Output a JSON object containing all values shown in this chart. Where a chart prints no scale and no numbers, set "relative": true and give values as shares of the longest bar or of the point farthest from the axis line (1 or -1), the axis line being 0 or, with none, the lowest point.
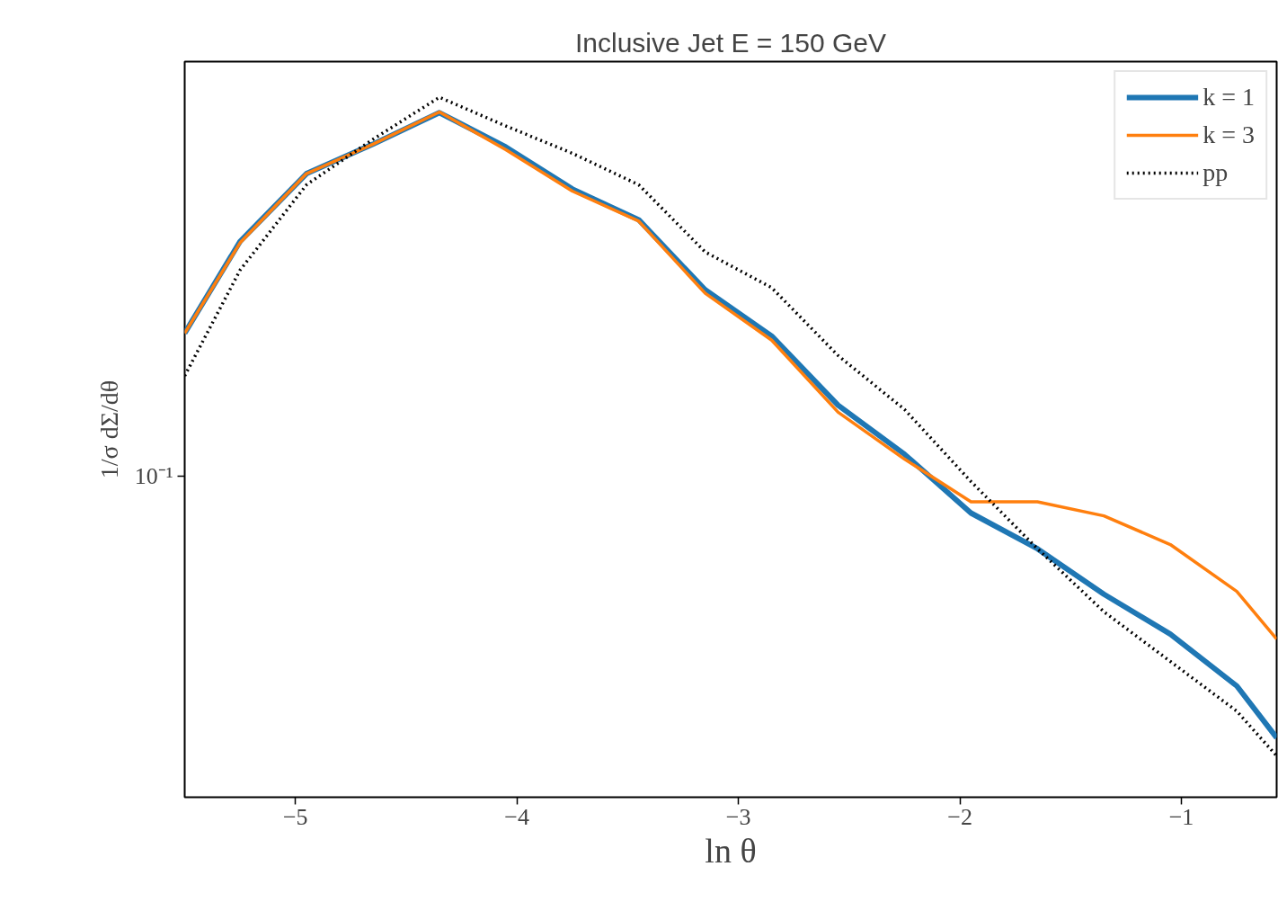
{
  "chart_data": {
    "type": "line",
    "title": "Inclusive Jet E = 150 GeV",
    "xlabel": "ln θ",
    "ylabel": "1/σ dΣ/dθ",
    "relative": true,
    "annotations": [
      "10⁻¹"
    ],
    "x": [
      -5.5,
      -5.25,
      -4.95,
      -4.65,
      -4.35,
      -4.05,
      -3.75,
      -3.45,
      -3.15,
      -2.85,
      -2.55,
      -2.25,
      -1.95,
      -1.65,
      -1.35,
      -1.05,
      -0.75,
      -0.57
    ],
    "series": [
      {
        "name": "k = 1",
        "color": "#1f77b4",
        "line_style": "solid",
        "values": [
          0.663,
          0.794,
          0.891,
          0.933,
          0.978,
          0.929,
          0.869,
          0.825,
          0.725,
          0.659,
          0.56,
          0.49,
          0.406,
          0.355,
          0.29,
          0.233,
          0.159,
          0.085
        ]
      },
      {
        "name": "k = 3",
        "color": "#ff7f0e",
        "line_style": "solid",
        "values": [
          0.663,
          0.792,
          0.891,
          0.933,
          0.979,
          0.925,
          0.866,
          0.823,
          0.72,
          0.653,
          0.55,
          0.483,
          0.422,
          0.422,
          0.402,
          0.361,
          0.294,
          0.226
        ]
      },
      {
        "name": "pp",
        "color": "#000000",
        "line_style": "dotted",
        "values": [
          0.602,
          0.753,
          0.875,
          0.94,
          1,
          0.959,
          0.92,
          0.875,
          0.779,
          0.728,
          0.631,
          0.554,
          0.451,
          0.355,
          0.265,
          0.194,
          0.123,
          0.059
        ]
      }
    ],
    "xlim": [
      -5.5,
      -0.57
    ],
    "xticks": [
      {
        "value": -5,
        "label": "−5"
      },
      {
        "value": -4,
        "label": "−4"
      },
      {
        "value": -3,
        "label": "−3"
      },
      {
        "value": -2,
        "label": "−2"
      },
      {
        "value": -1,
        "label": "−1"
      }
    ],
    "grid": false,
    "legend": "top right"
  }
}
